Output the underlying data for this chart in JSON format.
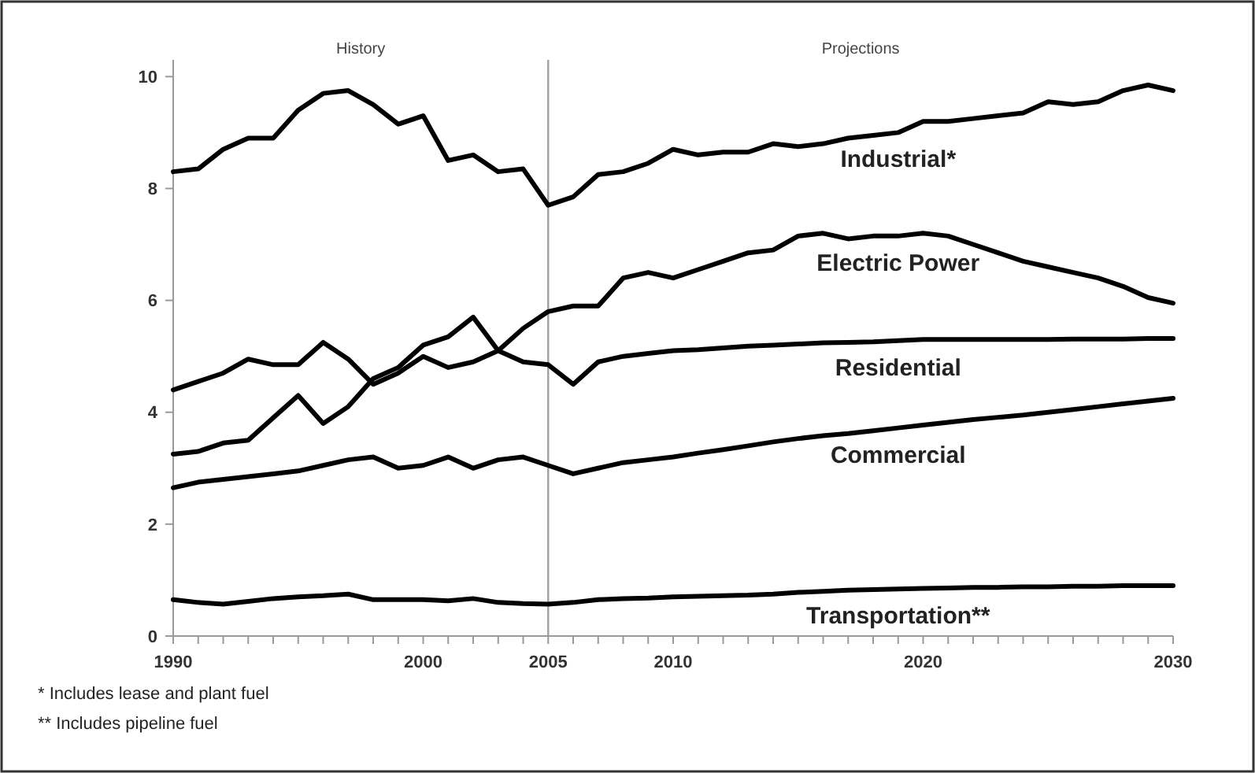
{
  "chart_data": {
    "type": "line",
    "x": [
      1990,
      1991,
      1992,
      1993,
      1994,
      1995,
      1996,
      1997,
      1998,
      1999,
      2000,
      2001,
      2002,
      2003,
      2004,
      2005,
      2006,
      2007,
      2008,
      2009,
      2010,
      2011,
      2012,
      2013,
      2014,
      2015,
      2016,
      2017,
      2018,
      2019,
      2020,
      2021,
      2022,
      2023,
      2024,
      2025,
      2026,
      2027,
      2028,
      2029,
      2030
    ],
    "series": [
      {
        "name": "Industrial*",
        "color": "#000000",
        "values": [
          8.3,
          8.35,
          8.7,
          8.9,
          8.9,
          9.4,
          9.7,
          9.75,
          9.5,
          9.15,
          9.3,
          8.5,
          8.6,
          8.3,
          8.35,
          7.7,
          7.85,
          8.25,
          8.3,
          8.45,
          8.7,
          8.6,
          8.65,
          8.65,
          8.8,
          8.75,
          8.8,
          8.9,
          8.95,
          9.0,
          9.2,
          9.2,
          9.25,
          9.3,
          9.35,
          9.55,
          9.5,
          9.55,
          9.75,
          9.85,
          9.75
        ]
      },
      {
        "name": "Electric Power",
        "color": "#000000",
        "values": [
          3.25,
          3.3,
          3.45,
          3.5,
          3.9,
          4.3,
          3.8,
          4.1,
          4.6,
          4.8,
          5.2,
          5.35,
          5.7,
          5.1,
          5.5,
          5.8,
          5.9,
          5.9,
          6.4,
          6.5,
          6.4,
          6.55,
          6.7,
          6.85,
          6.9,
          7.15,
          7.2,
          7.1,
          7.15,
          7.15,
          7.2,
          7.15,
          7.0,
          6.85,
          6.7,
          6.6,
          6.5,
          6.4,
          6.25,
          6.05,
          5.95
        ]
      },
      {
        "name": "Residential",
        "color": "#000000",
        "values": [
          4.4,
          4.55,
          4.7,
          4.95,
          4.85,
          4.85,
          5.25,
          4.95,
          4.5,
          4.7,
          5.0,
          4.8,
          4.9,
          5.1,
          4.9,
          4.85,
          4.5,
          4.9,
          5.0,
          5.05,
          5.1,
          5.12,
          5.15,
          5.18,
          5.2,
          5.22,
          5.24,
          5.25,
          5.26,
          5.28,
          5.3,
          5.3,
          5.3,
          5.3,
          5.3,
          5.3,
          5.31,
          5.31,
          5.31,
          5.32,
          5.32
        ]
      },
      {
        "name": "Commercial",
        "color": "#000000",
        "values": [
          2.65,
          2.75,
          2.8,
          2.85,
          2.9,
          2.95,
          3.05,
          3.15,
          3.2,
          3.0,
          3.05,
          3.2,
          3.0,
          3.15,
          3.2,
          3.05,
          2.9,
          3.0,
          3.1,
          3.15,
          3.2,
          3.27,
          3.33,
          3.4,
          3.47,
          3.53,
          3.58,
          3.62,
          3.67,
          3.72,
          3.77,
          3.82,
          3.87,
          3.91,
          3.95,
          4.0,
          4.05,
          4.1,
          4.15,
          4.2,
          4.25
        ]
      },
      {
        "name": "Transportation**",
        "color": "#000000",
        "values": [
          0.65,
          0.6,
          0.57,
          0.62,
          0.67,
          0.7,
          0.72,
          0.75,
          0.65,
          0.65,
          0.65,
          0.63,
          0.67,
          0.6,
          0.58,
          0.57,
          0.6,
          0.65,
          0.67,
          0.68,
          0.7,
          0.71,
          0.72,
          0.73,
          0.75,
          0.78,
          0.8,
          0.82,
          0.83,
          0.84,
          0.85,
          0.86,
          0.87,
          0.87,
          0.88,
          0.88,
          0.89,
          0.89,
          0.9,
          0.9,
          0.9
        ]
      }
    ],
    "xlim": [
      1990,
      2030
    ],
    "xticks": [
      1990,
      {
        "value": 1991,
        "label": null
      },
      {
        "value": 1992,
        "label": null
      },
      {
        "value": 1993,
        "label": null
      },
      {
        "value": 1994,
        "label": null
      },
      {
        "value": 1995,
        "label": null
      },
      {
        "value": 1996,
        "label": null
      },
      {
        "value": 1997,
        "label": null
      },
      {
        "value": 1998,
        "label": null
      },
      {
        "value": 1999,
        "label": null
      },
      2000,
      {
        "value": 2001,
        "label": null
      },
      {
        "value": 2002,
        "label": null
      },
      {
        "value": 2003,
        "label": null
      },
      {
        "value": 2004,
        "label": null
      },
      2005,
      {
        "value": 2006,
        "label": null
      },
      {
        "value": 2007,
        "label": null
      },
      {
        "value": 2008,
        "label": null
      },
      {
        "value": 2009,
        "label": null
      },
      2010,
      {
        "value": 2011,
        "label": null
      },
      {
        "value": 2012,
        "label": null
      },
      {
        "value": 2013,
        "label": null
      },
      {
        "value": 2014,
        "label": null
      },
      {
        "value": 2015,
        "label": null
      },
      {
        "value": 2016,
        "label": null
      },
      {
        "value": 2017,
        "label": null
      },
      {
        "value": 2018,
        "label": null
      },
      {
        "value": 2019,
        "label": null
      },
      2020,
      {
        "value": 2021,
        "label": null
      },
      {
        "value": 2022,
        "label": null
      },
      {
        "value": 2023,
        "label": null
      },
      {
        "value": 2024,
        "label": null
      },
      {
        "value": 2025,
        "label": null
      },
      {
        "value": 2026,
        "label": null
      },
      {
        "value": 2027,
        "label": null
      },
      {
        "value": 2028,
        "label": null
      },
      {
        "value": 2029,
        "label": null
      },
      2030
    ],
    "ylim": [
      0,
      10.3
    ],
    "yticks": [
      0,
      2,
      4,
      6,
      8,
      10
    ],
    "ref_lines": [
      {
        "axis": "x",
        "value": 2005,
        "color": "#a0a0a0"
      }
    ],
    "annotations": [
      "History",
      "Projections",
      "* Includes lease and plant fuel",
      "** Includes pipeline fuel"
    ],
    "grid": false,
    "legend": false,
    "marker": "none",
    "line_style": "solid"
  }
}
